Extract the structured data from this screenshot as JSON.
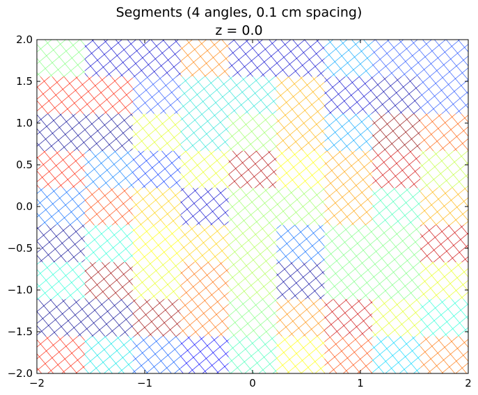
{
  "chart_data": {
    "type": "heatmap",
    "title": "Segments (4 angles, 0.1 cm spacing)",
    "subtitle": "z = 0.0",
    "xlabel": "",
    "ylabel": "",
    "xlim": [
      -2,
      2
    ],
    "ylim": [
      -2,
      2
    ],
    "x_ticks": [
      -2,
      -1,
      0,
      1,
      2
    ],
    "y_ticks": [
      2.0,
      1.5,
      1.0,
      0.5,
      0.0,
      -0.5,
      -1.0,
      -1.5,
      -2.0
    ],
    "x_tick_labels": [
      "−2",
      "−1",
      "0",
      "1",
      "2"
    ],
    "y_tick_labels": [
      "2.0",
      "1.5",
      "1.0",
      "0.5",
      "0.0",
      "−0.5",
      "−1.0",
      "−1.5",
      "−2.0"
    ],
    "grid": false,
    "pattern": "cross-hatch",
    "segment_edges_x": [
      -2.0,
      -1.556,
      -1.111,
      -0.667,
      -0.222,
      0.222,
      0.667,
      1.111,
      1.556,
      2.0
    ],
    "segment_edges_y": [
      2.0,
      1.556,
      1.111,
      0.667,
      0.222,
      -0.222,
      -0.667,
      -1.111,
      -1.556,
      -2.0
    ],
    "segment_colors": [
      [
        "#7dff7a",
        "#0000cd",
        "#0000cd",
        "#ff7f00",
        "#0000cd",
        "#0000cd",
        "#00a4ff",
        "#1f4fff",
        "#1f4fff"
      ],
      [
        "#ff1a00",
        "#ff1a00",
        "#1f4fff",
        "#22e2d5",
        "#22e2d5",
        "#ffb000",
        "#0000cd",
        "#0000a8",
        "#1f4fff"
      ],
      [
        "#000090",
        "#000090",
        "#dfff18",
        "#22e2d5",
        "#97ff5e",
        "#ffb000",
        "#00a4ff",
        "#8b0000",
        "#ff5a00"
      ],
      [
        "#ff1a00",
        "#007aff",
        "#0033ff",
        "#e6ff12",
        "#b00000",
        "#ffff00",
        "#ffa000",
        "#d00000",
        "#bfff37"
      ],
      [
        "#0066ff",
        "#ff4000",
        "#ffcf00",
        "#0000cd",
        "#97ff5e",
        "#97ff5e",
        "#ffa000",
        "#3effb4",
        "#ffb000"
      ],
      [
        "#00008f",
        "#22ffd5",
        "#ffff00",
        "#ffcf00",
        "#aaff4d",
        "#0066ff",
        "#77ff7d",
        "#77ff7d",
        "#cc0000"
      ],
      [
        "#22ffd5",
        "#990000",
        "#e6ff12",
        "#ff6a00",
        "#aaff4d",
        "#00009c",
        "#77ff7d",
        "#77ff7d",
        "#e6ff12"
      ],
      [
        "#00008f",
        "#00008f",
        "#990000",
        "#ff6a00",
        "#7dff7a",
        "#ff8c00",
        "#cc0000",
        "#dfff18",
        "#22ffd5"
      ],
      [
        "#ff1a00",
        "#00e5e5",
        "#0055ff",
        "#0000ff",
        "#3effb4",
        "#ffff00",
        "#ff4500",
        "#00d5ff",
        "#ff7000"
      ]
    ]
  }
}
